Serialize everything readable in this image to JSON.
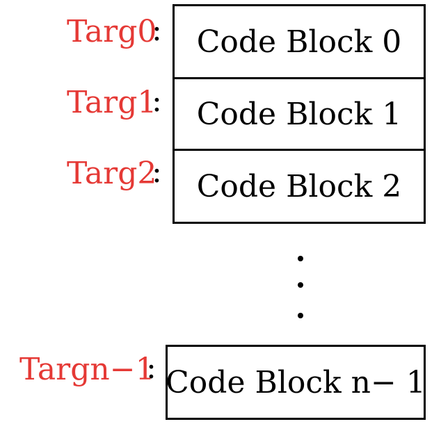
{
  "diagram": {
    "rows": [
      {
        "label": "Targ0",
        "separator": ":",
        "block": "Code Block 0"
      },
      {
        "label": "Targ1",
        "separator": ":",
        "block": "Code Block 1"
      },
      {
        "label": "Targ2",
        "separator": ":",
        "block": "Code Block 2"
      },
      {
        "label": "Targn−1",
        "separator": ":",
        "block": "Code Block n− 1"
      }
    ],
    "ellipsis": [
      "•",
      "•",
      "•"
    ],
    "colors": {
      "label": "#e53935",
      "text": "#000000",
      "border": "#000000"
    }
  }
}
